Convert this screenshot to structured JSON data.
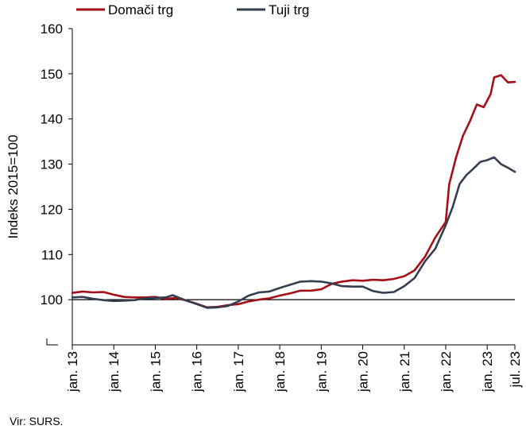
{
  "chart_data": {
    "type": "line",
    "ylabel": "Indeks 2015=100",
    "xlabel": "",
    "ylim": [
      90,
      160
    ],
    "yticks": [
      100,
      110,
      120,
      130,
      140,
      150,
      160
    ],
    "x_tick_labels": [
      "jan. 13",
      "jan. 14",
      "jan. 15",
      "jan. 16",
      "jan. 17",
      "jan. 18",
      "jan. 19",
      "jan. 20",
      "jan. 21",
      "jan. 22",
      "jan. 23",
      "jul. 23"
    ],
    "x_range": [
      "2013-01",
      "2023-09"
    ],
    "reference_line": 100,
    "grid": false,
    "legend_position": "top-left",
    "axis_break": true,
    "series": [
      {
        "name": "Domači trg",
        "color": "#a50f15",
        "points": [
          [
            "2013-01",
            101.5
          ],
          [
            "2013-04",
            101.8
          ],
          [
            "2013-07",
            101.6
          ],
          [
            "2013-10",
            101.7
          ],
          [
            "2014-01",
            101.1
          ],
          [
            "2014-04",
            100.6
          ],
          [
            "2014-07",
            100.5
          ],
          [
            "2014-10",
            100.5
          ],
          [
            "2015-01",
            100.6
          ],
          [
            "2015-04",
            100.2
          ],
          [
            "2015-07",
            100.4
          ],
          [
            "2015-10",
            99.8
          ],
          [
            "2016-01",
            99.1
          ],
          [
            "2016-04",
            98.3
          ],
          [
            "2016-07",
            98.4
          ],
          [
            "2016-10",
            98.8
          ],
          [
            "2017-01",
            99.0
          ],
          [
            "2017-04",
            99.6
          ],
          [
            "2017-07",
            100.0
          ],
          [
            "2017-10",
            100.3
          ],
          [
            "2018-01",
            100.9
          ],
          [
            "2018-04",
            101.4
          ],
          [
            "2018-07",
            102.0
          ],
          [
            "2018-10",
            102.0
          ],
          [
            "2019-01",
            102.3
          ],
          [
            "2019-04",
            103.5
          ],
          [
            "2019-07",
            104.0
          ],
          [
            "2019-10",
            104.3
          ],
          [
            "2020-01",
            104.2
          ],
          [
            "2020-04",
            104.4
          ],
          [
            "2020-07",
            104.3
          ],
          [
            "2020-10",
            104.6
          ],
          [
            "2021-01",
            105.2
          ],
          [
            "2021-04",
            106.5
          ],
          [
            "2021-07",
            109.5
          ],
          [
            "2021-10",
            113.8
          ],
          [
            "2022-01",
            117.2
          ],
          [
            "2022-02",
            125.5
          ],
          [
            "2022-04",
            131.5
          ],
          [
            "2022-06",
            136.3
          ],
          [
            "2022-08",
            139.5
          ],
          [
            "2022-10",
            143.2
          ],
          [
            "2022-12",
            142.6
          ],
          [
            "2023-02",
            145.5
          ],
          [
            "2023-03",
            149.2
          ],
          [
            "2023-05",
            149.7
          ],
          [
            "2023-07",
            148.1
          ],
          [
            "2023-09",
            148.2
          ]
        ]
      },
      {
        "name": "Tuji trg",
        "color": "#333f50",
        "points": [
          [
            "2013-01",
            100.5
          ],
          [
            "2013-04",
            100.6
          ],
          [
            "2013-07",
            100.2
          ],
          [
            "2013-10",
            99.9
          ],
          [
            "2014-01",
            99.7
          ],
          [
            "2014-04",
            99.8
          ],
          [
            "2014-07",
            99.9
          ],
          [
            "2014-10",
            100.3
          ],
          [
            "2015-01",
            100.4
          ],
          [
            "2015-04",
            100.5
          ],
          [
            "2015-06",
            101.0
          ],
          [
            "2015-10",
            99.8
          ],
          [
            "2016-01",
            99.0
          ],
          [
            "2016-04",
            98.2
          ],
          [
            "2016-07",
            98.3
          ],
          [
            "2016-10",
            98.6
          ],
          [
            "2017-01",
            99.6
          ],
          [
            "2017-04",
            100.9
          ],
          [
            "2017-07",
            101.6
          ],
          [
            "2017-10",
            101.8
          ],
          [
            "2018-01",
            102.6
          ],
          [
            "2018-04",
            103.3
          ],
          [
            "2018-07",
            104.0
          ],
          [
            "2018-10",
            104.1
          ],
          [
            "2019-01",
            104.0
          ],
          [
            "2019-04",
            103.6
          ],
          [
            "2019-07",
            103.0
          ],
          [
            "2019-10",
            102.9
          ],
          [
            "2020-01",
            102.9
          ],
          [
            "2020-04",
            101.9
          ],
          [
            "2020-07",
            101.5
          ],
          [
            "2020-10",
            101.7
          ],
          [
            "2021-01",
            103.0
          ],
          [
            "2021-04",
            104.8
          ],
          [
            "2021-07",
            108.5
          ],
          [
            "2021-10",
            111.3
          ],
          [
            "2022-01",
            116.5
          ],
          [
            "2022-03",
            120.5
          ],
          [
            "2022-05",
            125.6
          ],
          [
            "2022-07",
            127.6
          ],
          [
            "2022-09",
            129.0
          ],
          [
            "2022-11",
            130.5
          ],
          [
            "2023-01",
            130.9
          ],
          [
            "2023-03",
            131.5
          ],
          [
            "2023-05",
            130.0
          ],
          [
            "2023-07",
            129.2
          ],
          [
            "2023-09",
            128.3
          ]
        ]
      }
    ]
  },
  "source": "Vir: SURS."
}
